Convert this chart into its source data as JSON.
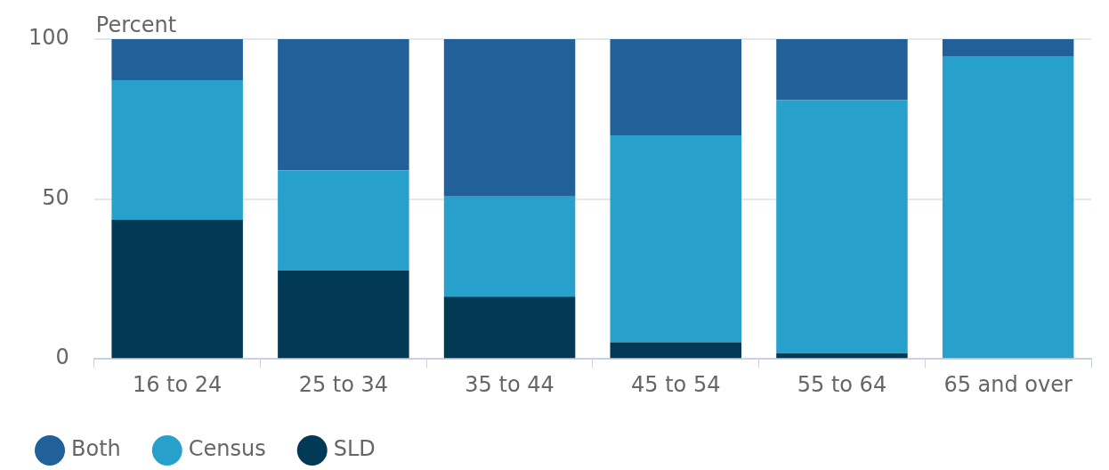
{
  "chart_data": {
    "type": "bar",
    "stacked": true,
    "ylabel": "Percent",
    "categories": [
      "16 to 24",
      "25 to 34",
      "35 to 44",
      "45 to 54",
      "55 to 64",
      "65 and over"
    ],
    "series": [
      {
        "name": "SLD",
        "color": "#023a56",
        "values": [
          43.5,
          27.7,
          19.5,
          5.2,
          1.8,
          0
        ]
      },
      {
        "name": "Census",
        "color": "#27a1cc",
        "values": [
          43.7,
          31.3,
          31.3,
          64.7,
          79.1,
          94.5
        ]
      },
      {
        "name": "Both",
        "color": "#22609a",
        "values": [
          12.8,
          41,
          49.2,
          30.1,
          19.1,
          5.5
        ]
      }
    ],
    "ylim": [
      0,
      100
    ],
    "yticks": [
      0,
      50,
      100
    ],
    "grid": "y",
    "legend": "bottom left"
  }
}
